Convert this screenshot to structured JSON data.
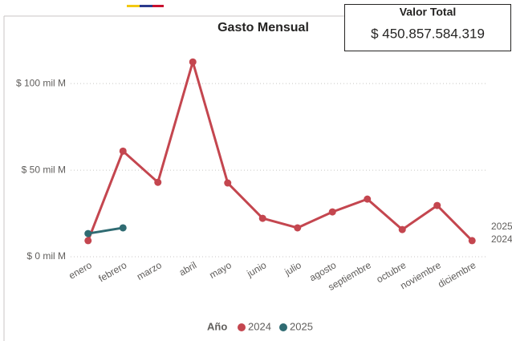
{
  "chart_data": {
    "type": "line",
    "title": "Gasto Mensual",
    "categories": [
      "enero",
      "febrero",
      "marzo",
      "abril",
      "mayo",
      "junio",
      "julio",
      "agosto",
      "septiembre",
      "octubre",
      "noviembre",
      "diciembre"
    ],
    "series": [
      {
        "name": "2024",
        "color": "#c4464f",
        "values": [
          9.3,
          61,
          43,
          112.5,
          42.6,
          22.2,
          16.7,
          25.9,
          33.3,
          15.7,
          29.6,
          9.3
        ]
      },
      {
        "name": "2025",
        "color": "#2f6b72",
        "values": [
          13.4,
          16.7,
          null,
          null,
          null,
          null,
          null,
          null,
          null,
          null,
          null,
          null
        ]
      }
    ],
    "ylim": [
      0,
      120
    ],
    "yticks": [
      {
        "value": 0,
        "label": "$ 0 mil M"
      },
      {
        "value": 50,
        "label": "$ 50 mil M"
      },
      {
        "value": 100,
        "label": "$ 100 mil M"
      }
    ],
    "grid": true,
    "legend": "bottom",
    "legend_title": "Año"
  },
  "card": {
    "title": "Valor Total",
    "value": "$ 450.857.584.319"
  }
}
